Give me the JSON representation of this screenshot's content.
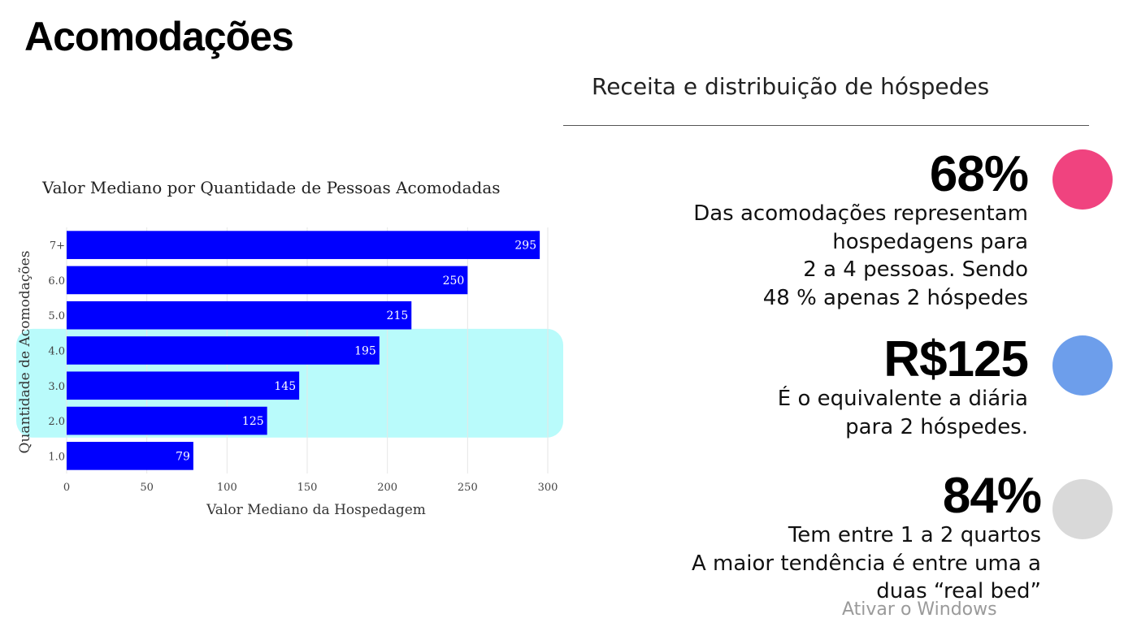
{
  "page": {
    "title": "Acomodações",
    "section_title": "Receita e distribuição de hóspedes",
    "watermark": "Ativar o Windows"
  },
  "stats": [
    {
      "value": "68%",
      "description": "Das acomodações representam\nhospedagens para\n2 a 4 pessoas. Sendo\n48 % apenas 2 hóspedes",
      "dot_color": "#f0437f"
    },
    {
      "value": "R$125",
      "description": "É o equivalente a diária\npara 2 hóspedes.",
      "dot_color": "#6d9eeb"
    },
    {
      "value": "84%",
      "description": "Tem entre 1 a 2 quartos\nA maior tendência é entre uma a\nduas “real bed”",
      "dot_color": "#d9d9d9"
    }
  ],
  "chart_data": {
    "type": "bar",
    "orientation": "horizontal",
    "title": "Valor Mediano por Quantidade de Pessoas Acomodadas",
    "xlabel": "Valor Mediano da Hospedagem",
    "ylabel": "Quantidade de Acomodações",
    "categories": [
      "7+",
      "6.0",
      "5.0",
      "4.0",
      "3.0",
      "2.0",
      "1.0"
    ],
    "values": [
      295,
      250,
      215,
      195,
      145,
      125,
      79
    ],
    "data_labels": [
      "295",
      "250",
      "215",
      "195",
      "145",
      "125",
      "79"
    ],
    "xlim": [
      0,
      300
    ],
    "xticks": [
      0,
      50,
      100,
      150,
      200,
      250,
      300
    ],
    "grid": true,
    "bar_color": "#0000ff",
    "highlight": {
      "categories": [
        "4.0",
        "3.0",
        "2.0"
      ],
      "color": "#b9fbfb"
    }
  }
}
